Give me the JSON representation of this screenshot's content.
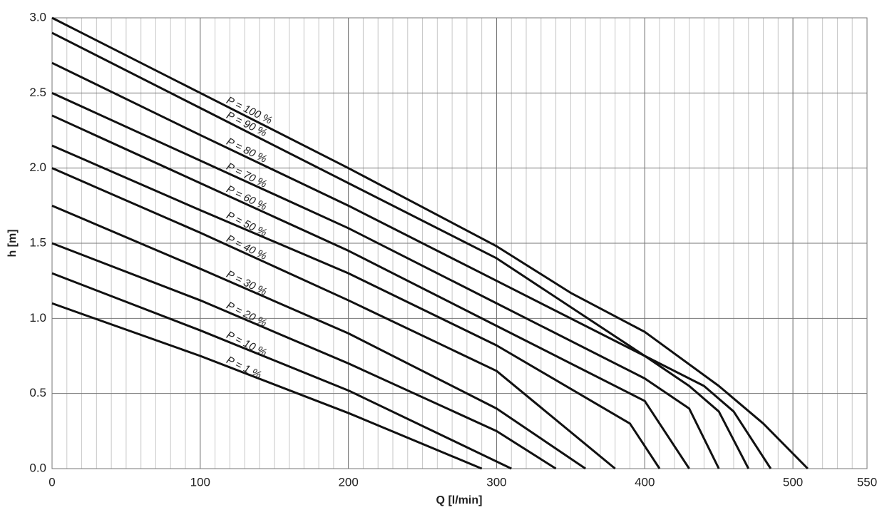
{
  "chart_data": {
    "type": "line",
    "xlabel": "Q [l/min]",
    "ylabel": "h [m]",
    "xlim": [
      0,
      550
    ],
    "ylim": [
      0,
      3.0
    ],
    "xticks": [
      0,
      100,
      200,
      300,
      400,
      500,
      550
    ],
    "yticks": [
      {
        "value": 0,
        "label": "0.0"
      },
      {
        "value": 0.5,
        "label": "0.5"
      },
      {
        "value": 1.0,
        "label": "1.0"
      },
      {
        "value": 1.5,
        "label": "1.5"
      },
      {
        "value": 2.0,
        "label": "2.0"
      },
      {
        "value": 2.5,
        "label": "2.5"
      },
      {
        "value": 3.0,
        "label": "3.0"
      }
    ],
    "grid": true,
    "x_minor_step": 10,
    "series": [
      {
        "name": "P = 100 %",
        "color": "#111111",
        "x": [
          0,
          100,
          200,
          300,
          350,
          400,
          450,
          480,
          510
        ],
        "values": [
          3.0,
          2.5,
          2.0,
          1.48,
          1.17,
          0.91,
          0.55,
          0.3,
          0
        ]
      },
      {
        "name": "P = 90 %",
        "color": "#111111",
        "x": [
          0,
          100,
          200,
          300,
          400,
          440,
          460,
          485
        ],
        "values": [
          2.9,
          2.4,
          1.9,
          1.4,
          0.75,
          0.55,
          0.38,
          0
        ]
      },
      {
        "name": "P = 80 %",
        "color": "#111111",
        "x": [
          0,
          100,
          200,
          300,
          400,
          430,
          450,
          470
        ],
        "values": [
          2.7,
          2.22,
          1.75,
          1.25,
          0.75,
          0.55,
          0.38,
          0
        ]
      },
      {
        "name": "P = 70 %",
        "color": "#111111",
        "x": [
          0,
          100,
          200,
          300,
          400,
          430,
          450
        ],
        "values": [
          2.5,
          2.05,
          1.6,
          1.1,
          0.6,
          0.4,
          0
        ]
      },
      {
        "name": "P = 60 %",
        "color": "#111111",
        "x": [
          0,
          100,
          200,
          300,
          400,
          410,
          430
        ],
        "values": [
          2.35,
          1.9,
          1.45,
          0.95,
          0.45,
          0.3,
          0
        ]
      },
      {
        "name": "P = 50 %",
        "color": "#111111",
        "x": [
          0,
          100,
          200,
          300,
          390,
          410
        ],
        "values": [
          2.15,
          1.72,
          1.3,
          0.82,
          0.3,
          0
        ]
      },
      {
        "name": "P = 40 %",
        "color": "#111111",
        "x": [
          0,
          100,
          200,
          300,
          380
        ],
        "values": [
          2.0,
          1.57,
          1.12,
          0.65,
          0
        ]
      },
      {
        "name": "P = 30 %",
        "color": "#111111",
        "x": [
          0,
          100,
          200,
          300,
          360
        ],
        "values": [
          1.75,
          1.33,
          0.9,
          0.4,
          0
        ]
      },
      {
        "name": "P = 20 %",
        "color": "#111111",
        "x": [
          0,
          100,
          200,
          300,
          340
        ],
        "values": [
          1.5,
          1.12,
          0.7,
          0.25,
          0
        ]
      },
      {
        "name": "P = 10 %",
        "color": "#111111",
        "x": [
          0,
          100,
          200,
          310
        ],
        "values": [
          1.3,
          0.92,
          0.52,
          0
        ]
      },
      {
        "name": "P = 1 %",
        "color": "#111111",
        "x": [
          0,
          100,
          200,
          290
        ],
        "values": [
          1.1,
          0.75,
          0.37,
          0
        ]
      }
    ]
  }
}
